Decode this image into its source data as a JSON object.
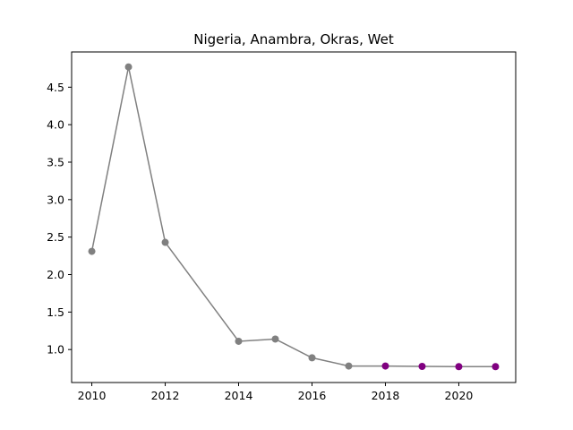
{
  "chart_data": {
    "type": "line",
    "title": "Nigeria, Anambra, Okras, Wet",
    "xlabel": "",
    "ylabel": "",
    "xlim": [
      2009.45,
      2021.55
    ],
    "ylim": [
      0.56,
      4.97
    ],
    "grid": false,
    "x_ticks": [
      2010,
      2012,
      2014,
      2016,
      2018,
      2020
    ],
    "x_tick_labels": [
      "2010",
      "2012",
      "2014",
      "2016",
      "2018",
      "2020"
    ],
    "y_ticks": [
      1.0,
      1.5,
      2.0,
      2.5,
      3.0,
      3.5,
      4.0,
      4.5
    ],
    "y_tick_labels": [
      "1.0",
      "1.5",
      "2.0",
      "2.5",
      "3.0",
      "3.5",
      "4.0",
      "4.5"
    ],
    "line_color": "#808080",
    "series": [
      {
        "color": "#808080",
        "x": [
          2010,
          2011,
          2012,
          2014,
          2015,
          2016,
          2017
        ],
        "y": [
          2.31,
          4.77,
          2.43,
          1.11,
          1.14,
          0.89,
          0.78
        ]
      },
      {
        "color": "#800080",
        "x": [
          2018,
          2019,
          2020,
          2021
        ],
        "y": [
          0.78,
          0.775,
          0.772,
          0.772
        ]
      }
    ]
  }
}
